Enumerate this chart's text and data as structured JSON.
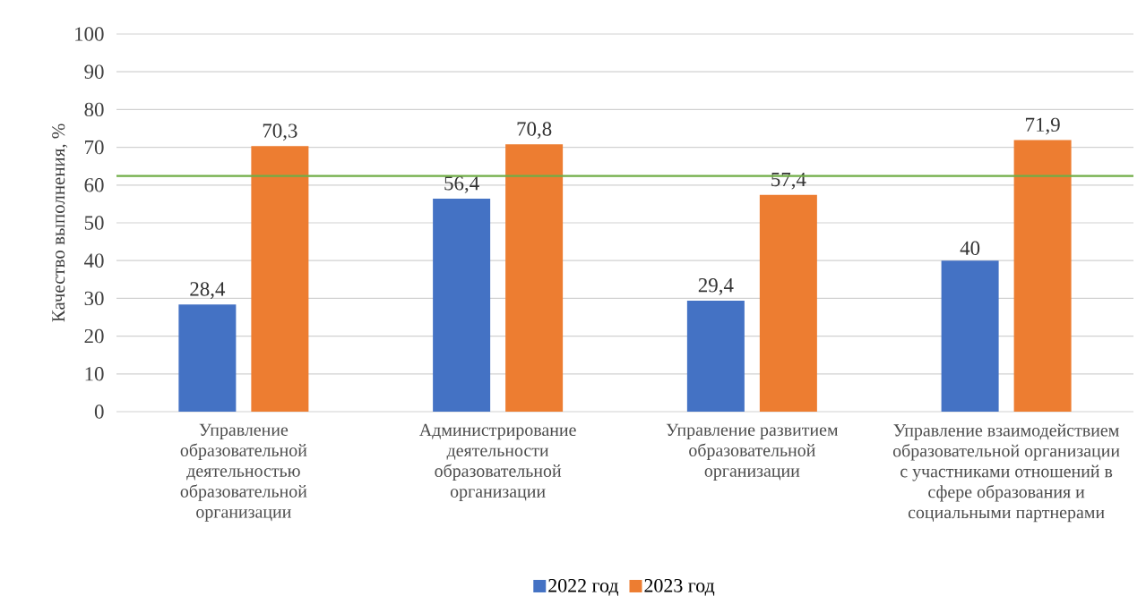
{
  "chart_data": {
    "type": "bar",
    "ylabel": "Качество выполнения, %",
    "categories": [
      "Управление образовательной деятельностью образовательной организации",
      "Администрирование деятельности образовательной организации",
      "Управление развитием образовательной организации",
      "Управление взаимодействием образовательной организации с участниками отношений в сфере образования и социальными партнерами"
    ],
    "series": [
      {
        "name": "2022 год",
        "color": "#4472c4",
        "values": [
          28.4,
          56.4,
          29.4,
          40
        ],
        "value_labels": [
          "28,4",
          "56,4",
          "29,4",
          "40"
        ]
      },
      {
        "name": "2023 год",
        "color": "#ed7d31",
        "values": [
          70.3,
          70.8,
          57.4,
          71.9
        ],
        "value_labels": [
          "70,3",
          "70,8",
          "57,4",
          "71,9"
        ]
      }
    ],
    "ylim": [
      0,
      100
    ],
    "yticks": [
      0,
      10,
      20,
      30,
      40,
      50,
      60,
      70,
      80,
      90,
      100
    ],
    "grid": "y",
    "legend": "bottom",
    "ref_lines": [
      {
        "axis": "y",
        "value": 62.4,
        "color": "#70ad47"
      }
    ]
  }
}
